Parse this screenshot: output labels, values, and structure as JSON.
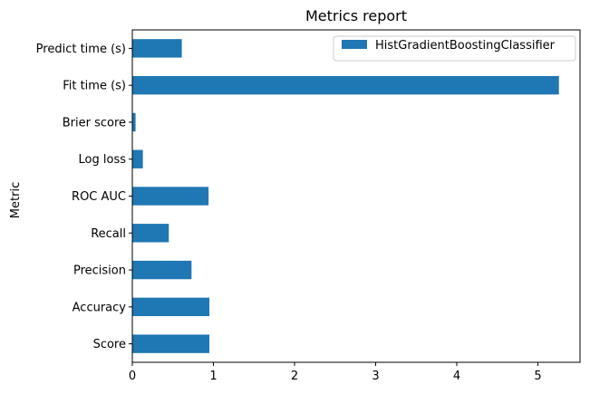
{
  "chart_data": {
    "type": "bar",
    "orientation": "horizontal",
    "title": "Metrics report",
    "xlabel": "",
    "ylabel": "Metric",
    "categories": [
      "Score",
      "Accuracy",
      "Precision",
      "Recall",
      "ROC AUC",
      "Log loss",
      "Brier score",
      "Fit time (s)",
      "Predict time (s)"
    ],
    "series": [
      {
        "name": "HistGradientBoostingClassifier",
        "color": "#1f77b4",
        "values": [
          0.95,
          0.95,
          0.73,
          0.45,
          0.94,
          0.13,
          0.04,
          5.26,
          0.61
        ]
      }
    ],
    "xlim": [
      0,
      5.52
    ],
    "xticks": [
      "0",
      "1",
      "2",
      "3",
      "4",
      "5"
    ],
    "grid": false,
    "legend": "top-right"
  }
}
